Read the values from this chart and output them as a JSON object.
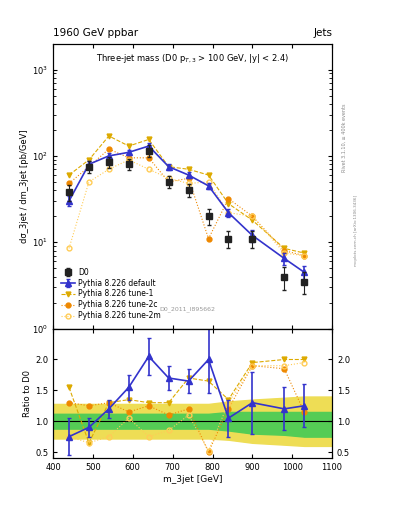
{
  "title_main": "1960 GeV ppbar",
  "title_right": "Jets",
  "plot_title": "Three-jet mass (D0 p$_{T,3}$ > 100 GeV, |y| < 2.4)",
  "xlabel": "m_3jet [GeV]",
  "ylabel_main": "dσ_3jet / dm_3jet [pb/GeV]",
  "ylabel_ratio": "Ratio to D0",
  "watermark": "D0_2011_I895662",
  "rivet_label": "Rivet 3.1.10, ≥ 400k events",
  "mcplots_label": "mcplots.cern.ch [arXiv:1306.3436]",
  "x_d0": [
    440,
    490,
    540,
    590,
    640,
    690,
    740,
    790,
    840,
    900,
    980,
    1030
  ],
  "y_d0": [
    38,
    75,
    85,
    80,
    115,
    50,
    40,
    20,
    11,
    11,
    4.0,
    3.5
  ],
  "y_d0_err_lo": [
    8,
    12,
    12,
    12,
    18,
    8,
    7,
    4,
    2.5,
    2.5,
    1.2,
    1.0
  ],
  "y_d0_err_hi": [
    8,
    12,
    12,
    12,
    18,
    8,
    7,
    4,
    2.5,
    2.5,
    1.2,
    1.0
  ],
  "x_py_default": [
    440,
    490,
    540,
    590,
    640,
    690,
    740,
    790,
    840,
    900,
    980,
    1030
  ],
  "y_py_default": [
    30,
    80,
    100,
    110,
    130,
    75,
    60,
    45,
    22,
    12,
    6.5,
    4.5
  ],
  "y_py_default_err_lo": [
    4,
    8,
    8,
    8,
    10,
    6,
    5,
    4,
    2.5,
    2,
    1.0,
    0.8
  ],
  "y_py_default_err_hi": [
    4,
    8,
    8,
    8,
    10,
    6,
    5,
    4,
    2.5,
    2,
    1.0,
    0.8
  ],
  "x_py_tune1": [
    440,
    490,
    540,
    590,
    640,
    690,
    740,
    790,
    840,
    900,
    980,
    1030
  ],
  "y_py_tune1": [
    60,
    90,
    170,
    130,
    155,
    75,
    70,
    60,
    28,
    18,
    8.5,
    7.5
  ],
  "x_py_tune2c": [
    440,
    490,
    540,
    590,
    640,
    690,
    740,
    790,
    840,
    900,
    980,
    1030
  ],
  "y_py_tune2c": [
    48,
    75,
    120,
    95,
    95,
    50,
    55,
    11,
    32,
    20,
    8.0,
    7.0
  ],
  "x_py_tune2m": [
    440,
    490,
    540,
    590,
    640,
    690,
    740,
    790,
    840,
    900,
    980,
    1030
  ],
  "y_py_tune2m": [
    8.5,
    50,
    70,
    90,
    70,
    55,
    48,
    50,
    22,
    20,
    7.5,
    7.0
  ],
  "ratio_x": [
    440,
    490,
    540,
    590,
    640,
    690,
    740,
    790,
    840,
    900,
    980,
    1030
  ],
  "ratio_py_default": [
    0.75,
    0.9,
    1.2,
    1.55,
    2.05,
    1.7,
    1.65,
    2.0,
    1.05,
    1.3,
    1.2,
    1.25
  ],
  "ratio_py_default_err_lo": [
    0.3,
    0.15,
    0.15,
    0.2,
    0.3,
    0.2,
    0.2,
    0.55,
    0.3,
    0.5,
    0.35,
    0.35
  ],
  "ratio_py_default_err_hi": [
    0.3,
    0.15,
    0.15,
    0.2,
    0.3,
    0.2,
    0.2,
    0.55,
    0.3,
    0.5,
    0.35,
    0.35
  ],
  "ratio_py_tune1": [
    1.55,
    0.65,
    1.3,
    1.35,
    1.3,
    1.3,
    1.7,
    1.65,
    1.35,
    1.95,
    2.0,
    2.0
  ],
  "ratio_py_tune2c": [
    1.3,
    1.25,
    1.3,
    1.15,
    1.25,
    1.1,
    1.2,
    0.5,
    1.2,
    1.9,
    1.85,
    1.15
  ],
  "ratio_py_tune2m": [
    0.75,
    0.65,
    0.75,
    1.05,
    0.75,
    0.85,
    1.1,
    0.52,
    1.3,
    1.9,
    1.9,
    1.95
  ],
  "band_x": [
    400,
    440,
    490,
    540,
    590,
    640,
    690,
    740,
    790,
    840,
    900,
    980,
    1030,
    1100
  ],
  "green_band_lo": [
    0.88,
    0.88,
    0.88,
    0.88,
    0.88,
    0.88,
    0.88,
    0.88,
    0.88,
    0.85,
    0.8,
    0.78,
    0.75,
    0.75
  ],
  "green_band_hi": [
    1.12,
    1.12,
    1.12,
    1.12,
    1.12,
    1.12,
    1.12,
    1.12,
    1.12,
    1.15,
    1.15,
    1.15,
    1.15,
    1.15
  ],
  "yellow_band_lo": [
    0.72,
    0.72,
    0.72,
    0.72,
    0.72,
    0.72,
    0.72,
    0.72,
    0.72,
    0.7,
    0.65,
    0.62,
    0.6,
    0.6
  ],
  "yellow_band_hi": [
    1.28,
    1.28,
    1.28,
    1.28,
    1.28,
    1.28,
    1.28,
    1.28,
    1.28,
    1.32,
    1.35,
    1.38,
    1.4,
    1.4
  ],
  "color_d0": "#222222",
  "color_py_default": "#3333cc",
  "color_py_tune1": "#ddaa00",
  "color_py_tune2c": "#ee8800",
  "color_py_tune2m": "#ffcc55",
  "color_green_band": "#55cc55",
  "color_yellow_band": "#eedd55",
  "xlim": [
    400,
    1100
  ],
  "ylim_main": [
    1,
    2000
  ],
  "ylim_ratio": [
    0.4,
    2.5
  ],
  "yticks_ratio": [
    0.5,
    1.0,
    1.5,
    2.0
  ],
  "xticks": [
    400,
    500,
    600,
    700,
    800,
    900,
    1000,
    1100
  ]
}
